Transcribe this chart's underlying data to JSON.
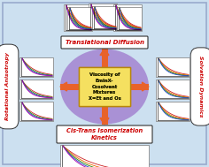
{
  "bg_color": "#cce0f0",
  "center_box_color": "#f5e060",
  "center_box_text": [
    "Viscosity of",
    "EminX-",
    "Cosolvent",
    "Mixtures",
    "X=Et and Os"
  ],
  "center_box_edge": "#b8860b",
  "arrow_color": "#e8622a",
  "glow_color": "#8844bb",
  "translational_label": "Translational Diffusion",
  "rotational_label": "Rotational Anisotropy",
  "solvation_label": "Solvation Dynamics",
  "cistrans_label": "Cis-Trans Isomerization\nKinetics",
  "trans_label_color": "#cc0000",
  "cistrans_label_color": "#cc0000",
  "side_label_rot_color": "#cc0000",
  "side_label_solv_color": "#cc0000",
  "graph_colors_main": [
    "#cc2222",
    "#ee6600",
    "#228800",
    "#2244cc",
    "#aa00aa"
  ],
  "graph_colors_solv": [
    "#cc2222",
    "#ee6600",
    "#228800",
    "#2244cc"
  ],
  "graph_colors_rot": [
    "#cc2222",
    "#228800",
    "#2244cc",
    "#aa00aa"
  ]
}
